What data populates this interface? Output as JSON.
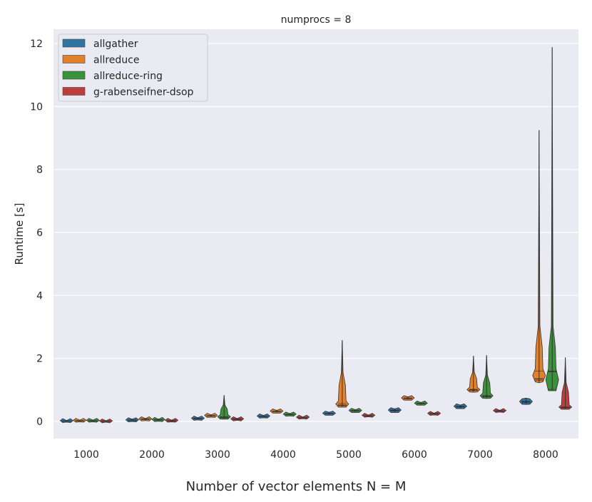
{
  "chart_data": {
    "type": "violin",
    "title": "numprocs = 8",
    "xlabel": "Number of vector elements N = M",
    "ylabel": "Runtime [s]",
    "categories": [
      "1000",
      "2000",
      "3000",
      "4000",
      "5000",
      "6000",
      "7000",
      "8000"
    ],
    "ylim": [
      -0.55,
      12.35
    ],
    "yticks": [
      0,
      2,
      4,
      6,
      8,
      10,
      12
    ],
    "grid": true,
    "legend_position": "top-left",
    "series": [
      {
        "name": "allgather",
        "color": "#3274a1",
        "stats": [
          {
            "min": 0.0,
            "q1": 0.01,
            "median": 0.01,
            "q3": 0.02,
            "max": 0.03
          },
          {
            "min": 0.02,
            "q1": 0.03,
            "median": 0.04,
            "q3": 0.05,
            "max": 0.07
          },
          {
            "min": 0.07,
            "q1": 0.08,
            "median": 0.09,
            "q3": 0.1,
            "max": 0.12
          },
          {
            "min": 0.14,
            "q1": 0.15,
            "median": 0.16,
            "q3": 0.17,
            "max": 0.19
          },
          {
            "min": 0.22,
            "q1": 0.24,
            "median": 0.25,
            "q3": 0.26,
            "max": 0.29
          },
          {
            "min": 0.31,
            "q1": 0.33,
            "median": 0.35,
            "q3": 0.37,
            "max": 0.4
          },
          {
            "min": 0.43,
            "q1": 0.45,
            "median": 0.47,
            "q3": 0.49,
            "max": 0.52
          },
          {
            "min": 0.56,
            "q1": 0.59,
            "median": 0.62,
            "q3": 0.65,
            "max": 0.74
          }
        ]
      },
      {
        "name": "allreduce",
        "color": "#e1812c",
        "stats": [
          {
            "min": 0.01,
            "q1": 0.02,
            "median": 0.02,
            "q3": 0.03,
            "max": 0.04
          },
          {
            "min": 0.05,
            "q1": 0.06,
            "median": 0.07,
            "q3": 0.08,
            "max": 0.09
          },
          {
            "min": 0.16,
            "q1": 0.17,
            "median": 0.18,
            "q3": 0.19,
            "max": 0.21
          },
          {
            "min": 0.29,
            "q1": 0.31,
            "median": 0.32,
            "q3": 0.33,
            "max": 0.35
          },
          {
            "min": 0.48,
            "q1": 0.5,
            "median": 0.52,
            "q3": 0.58,
            "max": 2.58
          },
          {
            "min": 0.7,
            "q1": 0.72,
            "median": 0.73,
            "q3": 0.75,
            "max": 0.78
          },
          {
            "min": 0.95,
            "q1": 0.98,
            "median": 1.0,
            "q3": 1.02,
            "max": 2.08
          },
          {
            "min": 1.25,
            "q1": 1.3,
            "median": 1.35,
            "q3": 1.6,
            "max": 9.25
          }
        ]
      },
      {
        "name": "allreduce-ring",
        "color": "#3a923a",
        "stats": [
          {
            "min": 0.01,
            "q1": 0.02,
            "median": 0.02,
            "q3": 0.03,
            "max": 0.04
          },
          {
            "min": 0.03,
            "q1": 0.04,
            "median": 0.05,
            "q3": 0.06,
            "max": 0.07
          },
          {
            "min": 0.1,
            "q1": 0.12,
            "median": 0.13,
            "q3": 0.15,
            "max": 0.83
          },
          {
            "min": 0.2,
            "q1": 0.21,
            "median": 0.22,
            "q3": 0.23,
            "max": 0.25
          },
          {
            "min": 0.31,
            "q1": 0.33,
            "median": 0.34,
            "q3": 0.35,
            "max": 0.37
          },
          {
            "min": 0.54,
            "q1": 0.56,
            "median": 0.57,
            "q3": 0.58,
            "max": 0.6
          },
          {
            "min": 0.75,
            "q1": 0.78,
            "median": 0.8,
            "q3": 0.83,
            "max": 2.1
          },
          {
            "min": 1.0,
            "q1": 1.02,
            "median": 1.58,
            "q3": 1.6,
            "max": 11.88
          }
        ]
      },
      {
        "name": "g-rabenseifner-dsop",
        "color": "#c03d3e",
        "stats": [
          {
            "min": 0.0,
            "q1": 0.0,
            "median": 0.01,
            "q3": 0.01,
            "max": 0.02
          },
          {
            "min": 0.01,
            "q1": 0.02,
            "median": 0.02,
            "q3": 0.03,
            "max": 0.04
          },
          {
            "min": 0.06,
            "q1": 0.06,
            "median": 0.07,
            "q3": 0.08,
            "max": 0.09
          },
          {
            "min": 0.11,
            "q1": 0.12,
            "median": 0.12,
            "q3": 0.13,
            "max": 0.14
          },
          {
            "min": 0.17,
            "q1": 0.18,
            "median": 0.18,
            "q3": 0.19,
            "max": 0.2
          },
          {
            "min": 0.23,
            "q1": 0.24,
            "median": 0.24,
            "q3": 0.25,
            "max": 0.26
          },
          {
            "min": 0.32,
            "q1": 0.33,
            "median": 0.33,
            "q3": 0.34,
            "max": 0.35
          },
          {
            "min": 0.41,
            "q1": 0.43,
            "median": 0.44,
            "q3": 0.46,
            "max": 2.03
          }
        ]
      }
    ]
  }
}
